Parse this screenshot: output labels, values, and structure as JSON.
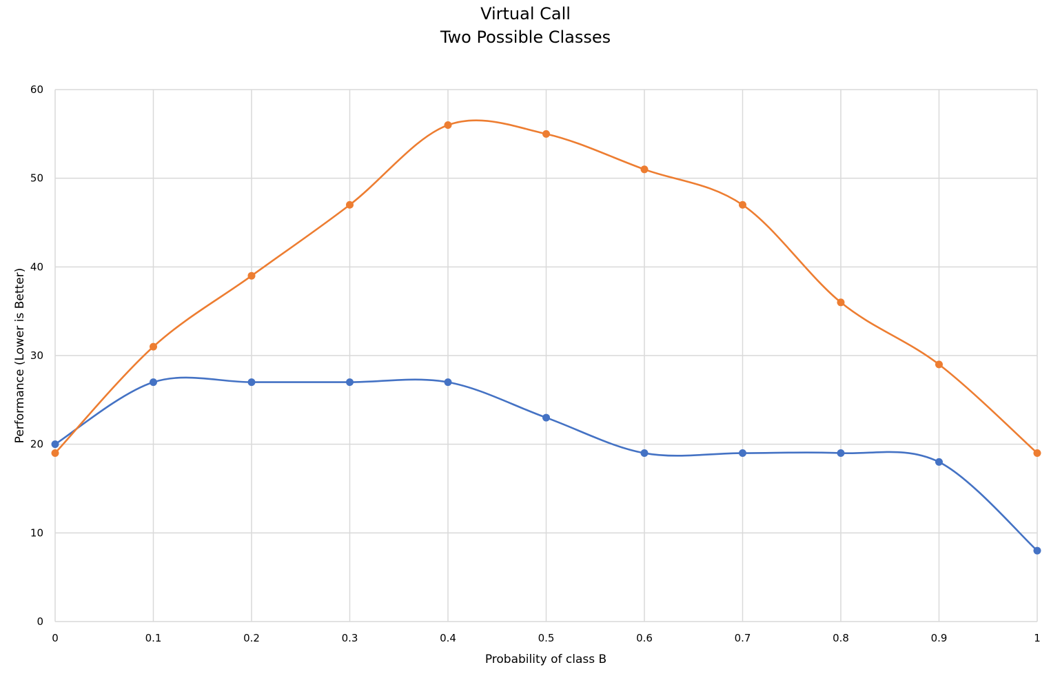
{
  "chart_data": {
    "type": "line",
    "title_lines": [
      "Virtual Call",
      "Two Possible Classes"
    ],
    "xlabel": "Probability of class B",
    "ylabel": "Performance (Lower is Better)",
    "x": [
      0,
      0.1,
      0.2,
      0.3,
      0.4,
      0.5,
      0.6,
      0.7,
      0.8,
      0.9,
      1
    ],
    "x_tick_labels": [
      "0",
      "0.1",
      "0.2",
      "0.3",
      "0.4",
      "0.5",
      "0.6",
      "0.7",
      "0.8",
      "0.9",
      "1"
    ],
    "y_tick_labels": [
      "0",
      "10",
      "20",
      "30",
      "40",
      "50",
      "60"
    ],
    "xlim": [
      0,
      1
    ],
    "ylim": [
      0,
      60
    ],
    "grid": true,
    "smooth": true,
    "series": [
      {
        "color": "#4472C4",
        "values": [
          20,
          27,
          27,
          27,
          27,
          23,
          19,
          19,
          19,
          18,
          8
        ]
      },
      {
        "color": "#ED7D31",
        "values": [
          19,
          31,
          39,
          47,
          56,
          55,
          51,
          47,
          36,
          29,
          19
        ]
      }
    ]
  }
}
